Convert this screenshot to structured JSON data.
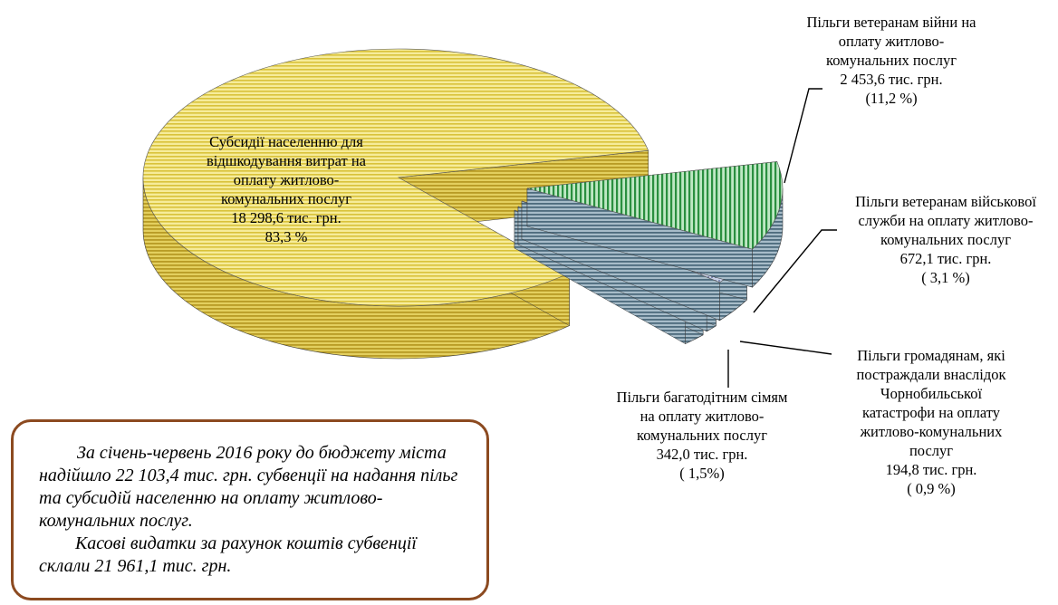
{
  "chart_data": {
    "type": "pie",
    "style": "3d-exploded",
    "slices": [
      {
        "key": "subsidies",
        "lines": [
          "Субсидії населенню для",
          "відшкодування витрат на",
          "оплату житлово-",
          "комунальних послуг"
        ],
        "amount": "18 298,6 тис. грн.",
        "share": "83,3 %",
        "value": 18298.6,
        "percent": 83.3,
        "color": "#e8d44d"
      },
      {
        "key": "war-veterans",
        "lines": [
          "Пільги ветеранам війни на",
          "оплату житлово-",
          "комунальних послуг"
        ],
        "amount": "2 453,6 тис. грн.",
        "share": "(11,2 %)",
        "value": 2453.6,
        "percent": 11.2,
        "color": "#2f9b4a"
      },
      {
        "key": "military-veterans",
        "lines": [
          "Пільги ветеранам військової",
          "служби на оплату житлово-",
          "комунальних послуг"
        ],
        "amount": "672,1 тис. грн.",
        "share": "( 3,1 %)",
        "value": 672.1,
        "percent": 3.1,
        "color": "#9aa6c8"
      },
      {
        "key": "chornobyl",
        "lines": [
          "Пільги громадянам, які",
          "постраждали внаслідок",
          "Чорнобильської",
          "катастрофи на оплату",
          "житлово-комунальних",
          "послуг"
        ],
        "amount": "194,8 тис. грн.",
        "share": "( 0,9 %)",
        "value": 194.8,
        "percent": 0.9,
        "color": "#e9b8a0"
      },
      {
        "key": "large-families",
        "lines": [
          "Пільги багатодітним сімям",
          "на оплату житлово-",
          "комунальних послуг"
        ],
        "amount": "342,0 тис. грн.",
        "share": "( 1,5%)",
        "value": 342.0,
        "percent": 1.5,
        "color": "#5bc3e8"
      }
    ],
    "side_color": "#5a7a8c"
  },
  "note": {
    "p1": "За січень-червень 2016 року  до бюджету міста надійшло 22 103,4 тис. грн. субвенції на надання пільг та субсидій населенню  на оплату житлово-комунальних послуг.",
    "p2": "Касові видатки за рахунок коштів субвенції склали 21 961,1 тис. грн."
  }
}
